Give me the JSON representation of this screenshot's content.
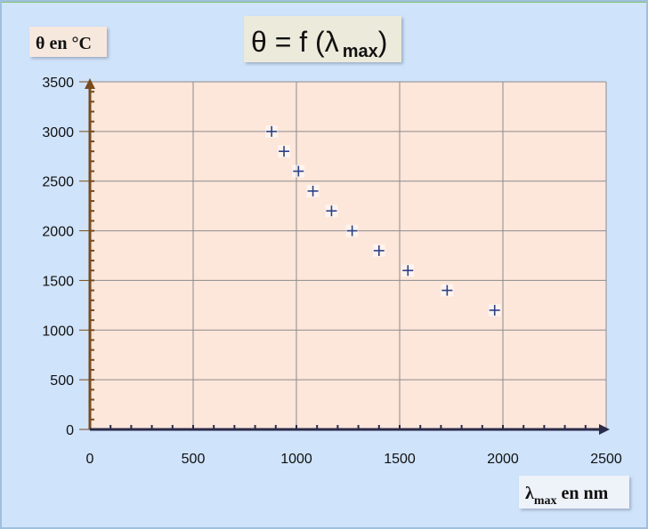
{
  "chart_data": {
    "type": "scatter",
    "title": "θ = f (λ max)",
    "title_main": "θ = f (λ",
    "title_sub": "max",
    "title_close": ")",
    "ylabel": "θ en °C",
    "xlabel_lambda": "λ",
    "xlabel_sub": "max",
    "xlabel_rest": "en nm",
    "xlim": [
      0,
      2500
    ],
    "ylim": [
      0,
      3500
    ],
    "x_ticks": [
      0,
      500,
      1000,
      1500,
      2000,
      2500
    ],
    "y_ticks": [
      0,
      500,
      1000,
      1500,
      2000,
      2500,
      3000,
      3500
    ],
    "x_tick_labels": [
      "0",
      "500",
      "1000",
      "1500",
      "2000",
      "2500"
    ],
    "y_tick_labels": [
      "0",
      "500",
      "1000",
      "1500",
      "2000",
      "2500",
      "3000",
      "3500"
    ],
    "grid": true,
    "marker": "plus",
    "series": [
      {
        "x": [
          880,
          940,
          1010,
          1080,
          1170,
          1270,
          1400,
          1540,
          1730,
          1960
        ],
        "y": [
          3000,
          2800,
          2600,
          2400,
          2200,
          2000,
          1800,
          1600,
          1400,
          1200
        ]
      }
    ]
  },
  "colors": {
    "background": "#cfe3fb",
    "plot_area": "#fde6da",
    "label_box": "#f7e8de",
    "title_box": "#eceadb",
    "grid": "#8c8c8c",
    "axis": "#7a4a1a",
    "marker": "#2b3f8a",
    "frame_top": "#7fc46a"
  }
}
